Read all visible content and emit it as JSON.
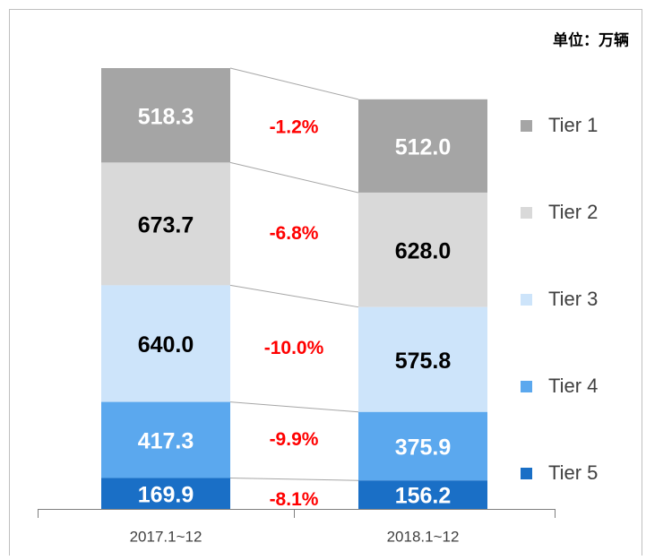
{
  "chart_data": {
    "type": "stacked_bar",
    "unit": "单位：万辆",
    "categories": [
      "2017.1~12",
      "2018.1~12"
    ],
    "series": [
      {
        "name": "Tier 1",
        "color": "#a5a5a5",
        "label_color": "#ffffff",
        "values": [
          518.3,
          512.0
        ],
        "value_labels": [
          "518.3",
          "512.0"
        ]
      },
      {
        "name": "Tier 2",
        "color": "#d9d9d9",
        "label_color": "#000000",
        "values": [
          673.7,
          628.0
        ],
        "value_labels": [
          "673.7",
          "628.0"
        ]
      },
      {
        "name": "Tier 3",
        "color": "#cde4fa",
        "label_color": "#000000",
        "values": [
          640.0,
          575.8
        ],
        "value_labels": [
          "640.0",
          "575.8"
        ]
      },
      {
        "name": "Tier 4",
        "color": "#5ba8ee",
        "label_color": "#ffffff",
        "values": [
          417.3,
          375.9
        ],
        "value_labels": [
          "417.3",
          "375.9"
        ]
      },
      {
        "name": "Tier 5",
        "color": "#1a6fc6",
        "label_color": "#ffffff",
        "values": [
          169.9,
          156.2
        ],
        "value_labels": [
          "169.9",
          "156.2"
        ]
      }
    ],
    "annotations": [
      "-1.2%",
      "-6.8%",
      "-10.0%",
      "-9.9%",
      "-8.1%"
    ],
    "annotation_color": "#ff0000"
  }
}
